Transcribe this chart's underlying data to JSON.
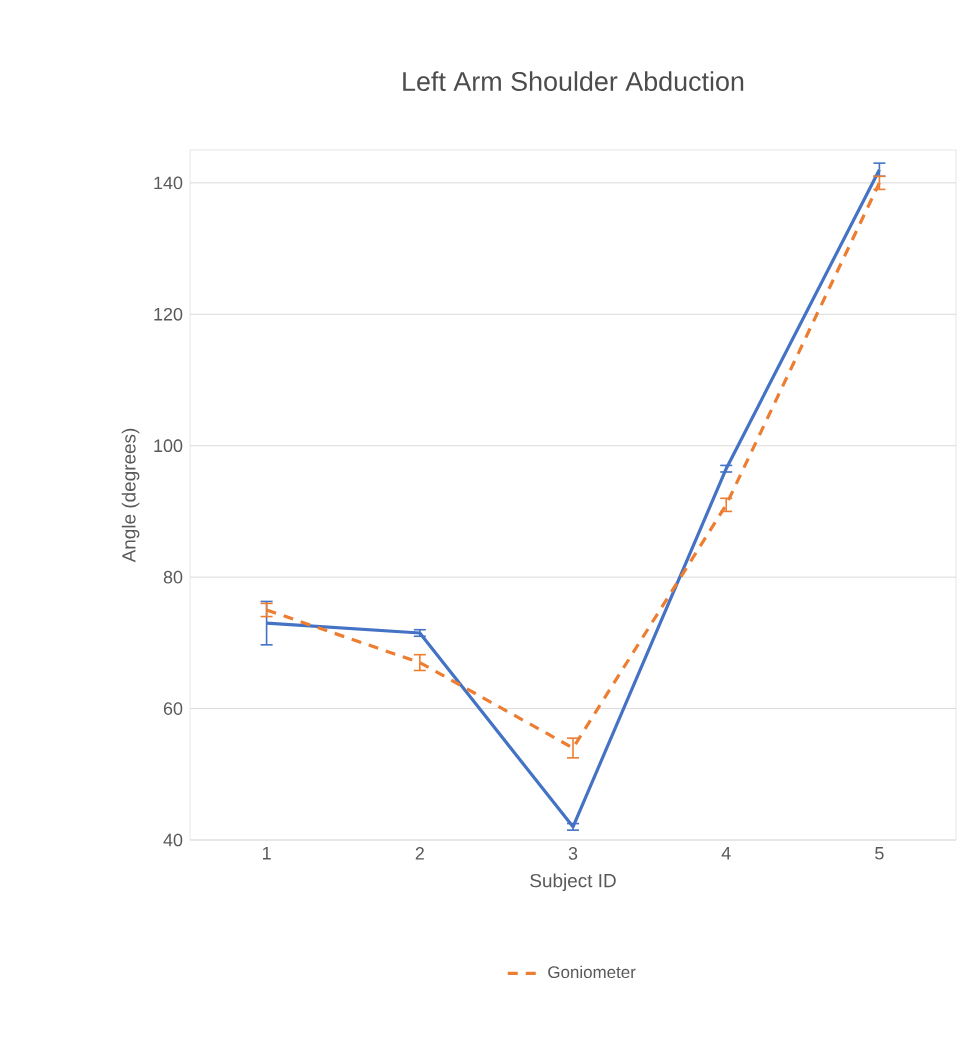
{
  "chart_data": {
    "type": "line",
    "title": "Left Arm Shoulder Abduction",
    "xlabel": "Subject ID",
    "ylabel": "Angle (degrees)",
    "categories": [
      "1",
      "2",
      "3",
      "4",
      "5"
    ],
    "series": [
      {
        "color": "#4472c4",
        "line_style": "solid",
        "values": [
          73,
          71.5,
          42,
          96.5,
          142
        ],
        "errors": [
          3.3,
          0.5,
          0.5,
          0.5,
          1
        ]
      },
      {
        "name": "Goniometer",
        "color": "#ed7d31",
        "line_style": "dashed",
        "values": [
          75,
          67,
          54,
          91,
          140
        ],
        "errors": [
          1,
          1.2,
          1.5,
          1,
          1
        ]
      }
    ],
    "ylim": [
      40,
      145
    ],
    "yticks": [
      40,
      60,
      80,
      100,
      120,
      140
    ],
    "grid": "y",
    "legend": "bottom"
  }
}
